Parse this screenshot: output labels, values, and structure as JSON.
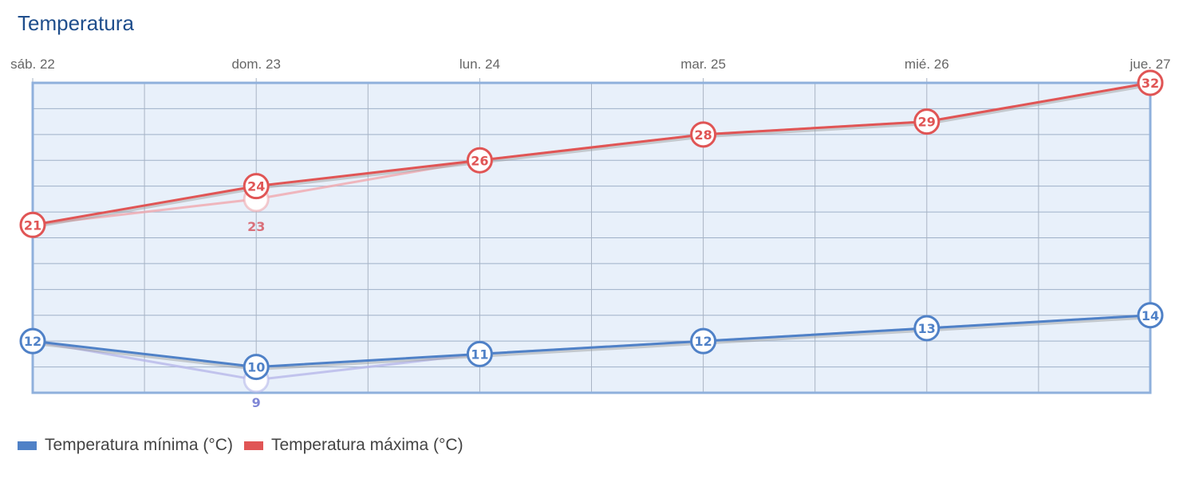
{
  "title": "Temperatura",
  "chart_data": {
    "type": "line",
    "title": "Temperatura",
    "categories": [
      "sáb. 22",
      "dom. 23",
      "lun. 24",
      "mar. 25",
      "mié. 26",
      "jue. 27"
    ],
    "ylim": [
      8,
      32
    ],
    "y_grid_step": 2,
    "grid": true,
    "x_axis_position": "top",
    "legend_position": "bottom-left",
    "series": [
      {
        "name": "Temperatura mínima (°C)",
        "color": "#4f81c7",
        "values": [
          12,
          10,
          11,
          12,
          13,
          14
        ],
        "faded_previous_values": [
          12,
          9,
          11,
          12,
          13,
          14
        ]
      },
      {
        "name": "Temperatura máxima (°C)",
        "color": "#e05555",
        "values": [
          21,
          24,
          26,
          28,
          29,
          32
        ],
        "faded_previous_values": [
          21,
          23,
          26,
          28,
          29,
          32
        ]
      }
    ],
    "plot_background": "#e8f0fa"
  }
}
